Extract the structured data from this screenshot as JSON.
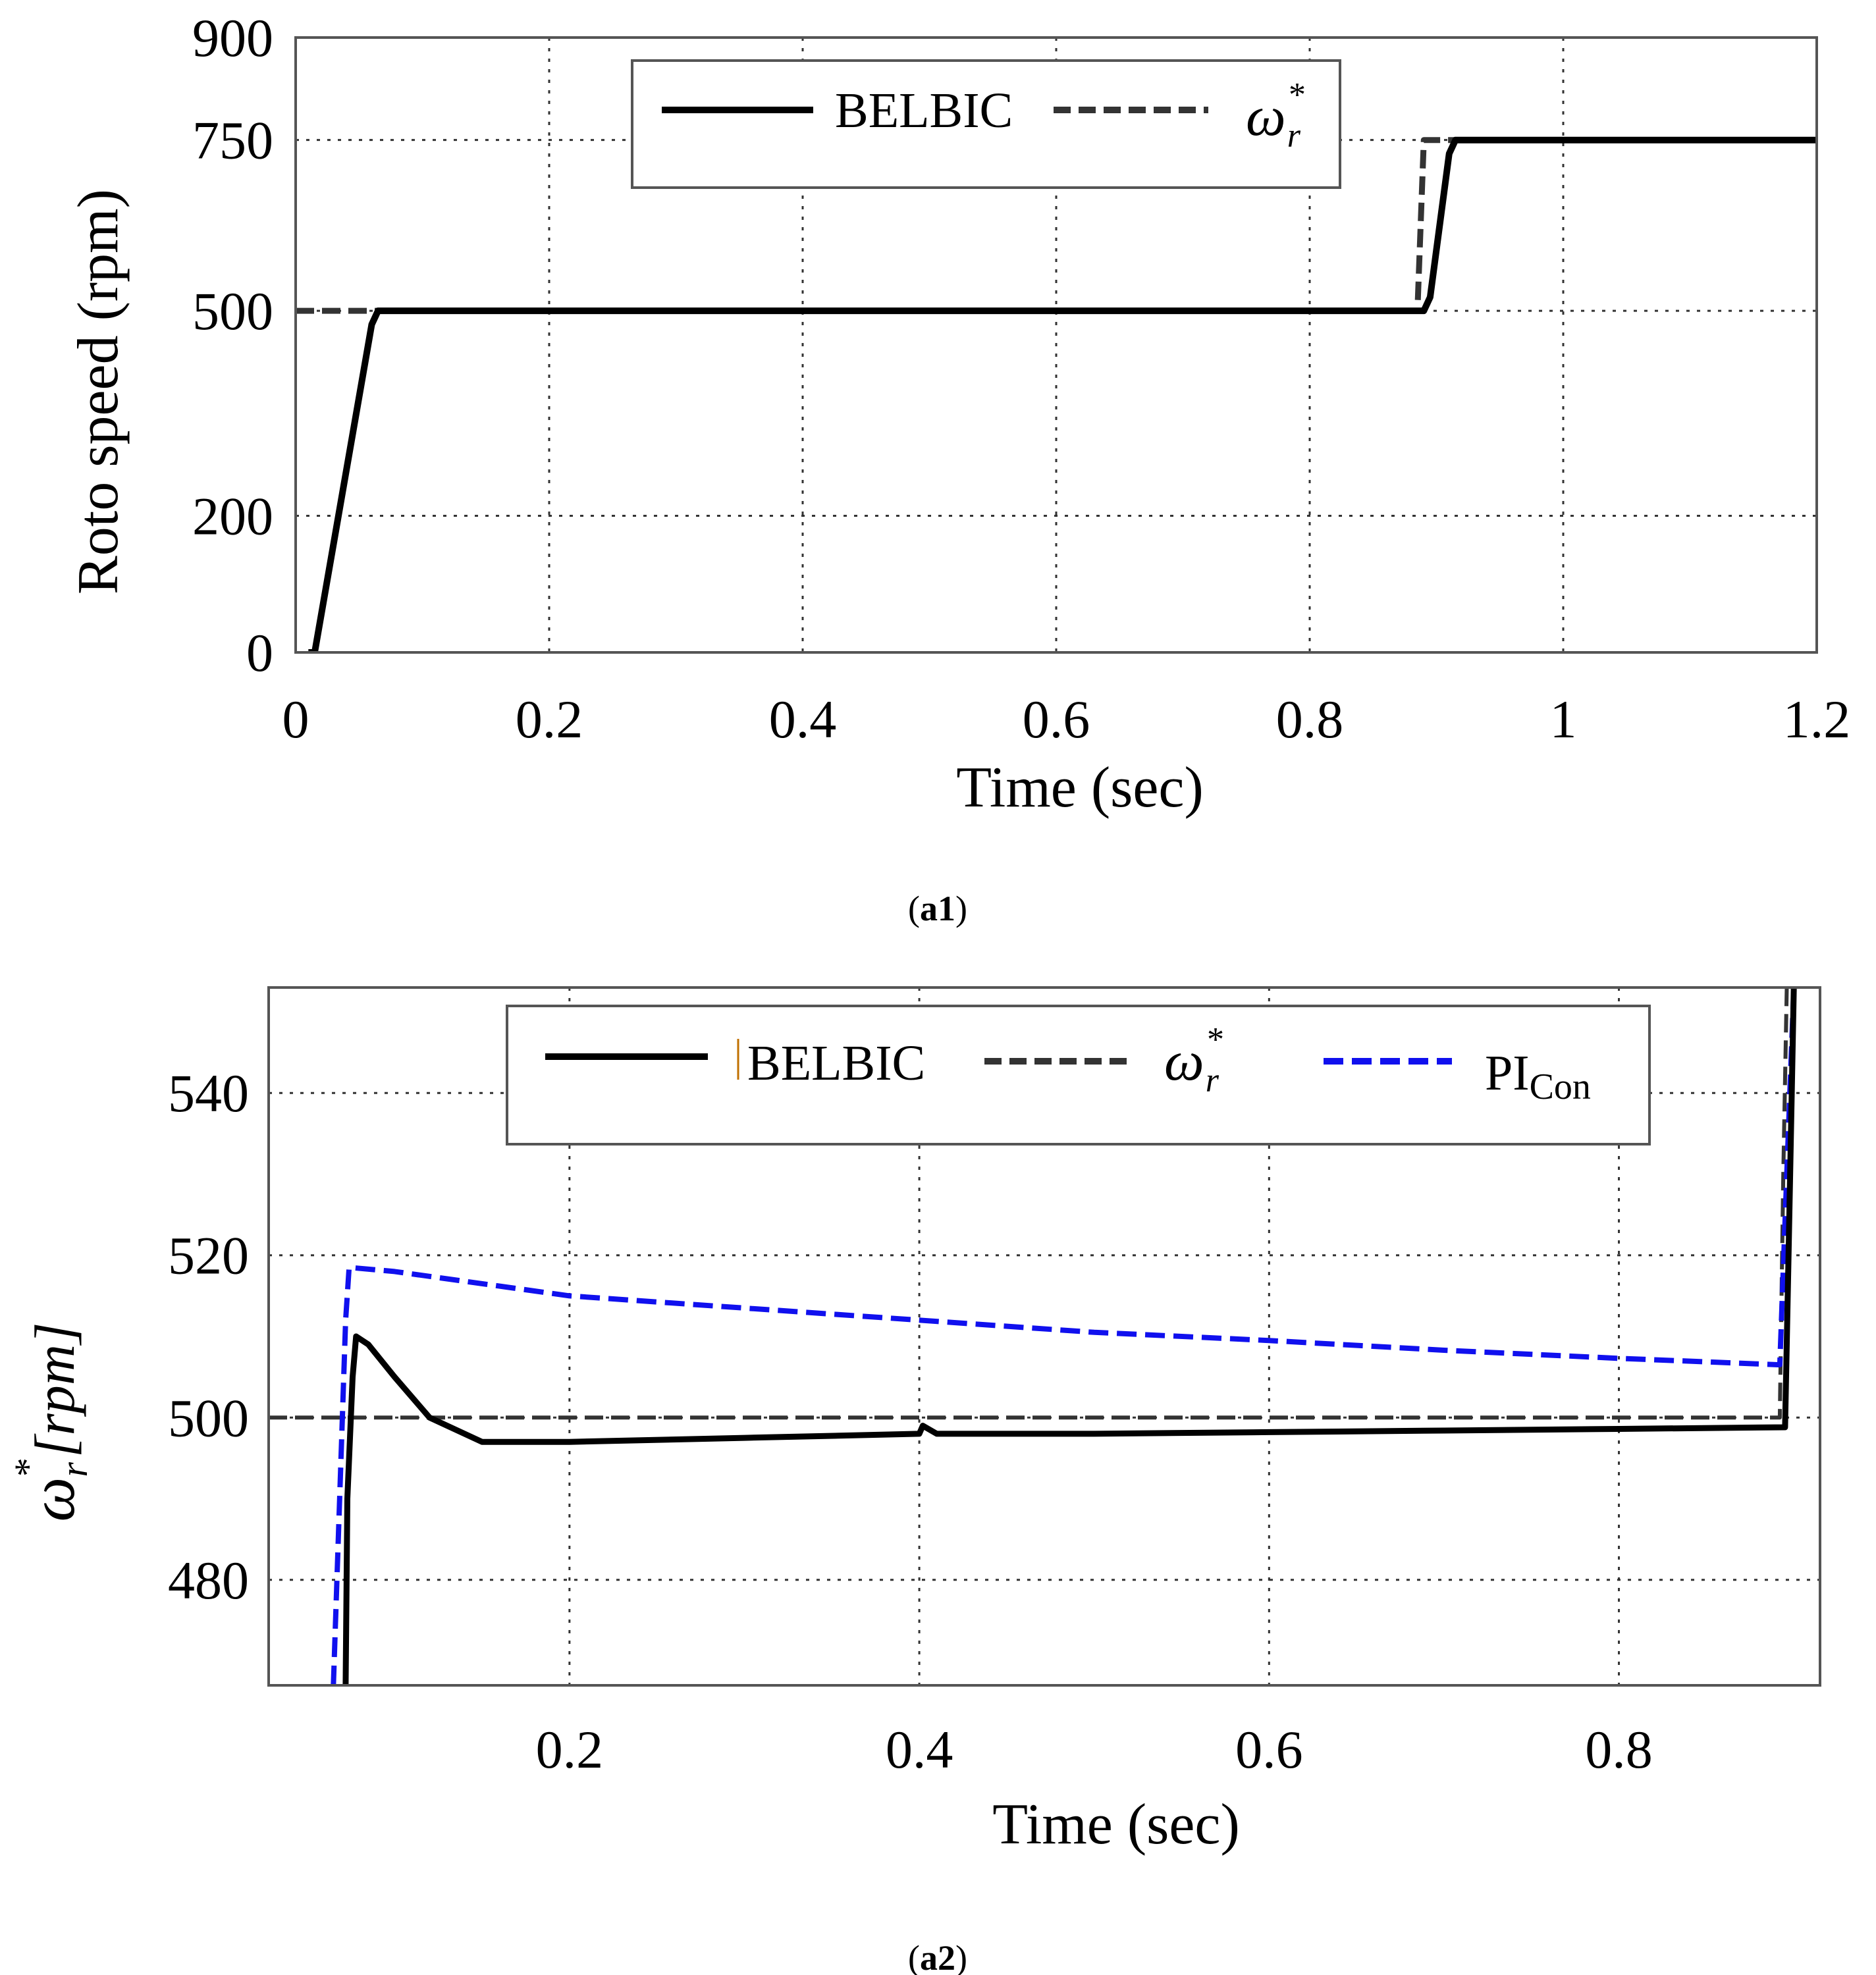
{
  "chart_data": [
    {
      "id": "a1",
      "type": "line",
      "caption": {
        "open": "(",
        "label": "a1",
        "close": ")"
      },
      "xlabel": "Time (sec)",
      "ylabel": "Roto speed (rpm)",
      "xlim": [
        0,
        1.2
      ],
      "ylim": [
        0,
        900
      ],
      "xticks": [
        0,
        0.2,
        0.4,
        0.6,
        0.8,
        1,
        1.2
      ],
      "xtick_labels": [
        "0",
        "0.2",
        "0.4",
        "0.6",
        "0.8",
        "1",
        "1.2"
      ],
      "yticks": [
        0,
        200,
        500,
        750,
        900
      ],
      "ytick_labels": [
        "0",
        "200",
        "500",
        "750",
        "900"
      ],
      "grid": true,
      "legend_position": "top-center",
      "series": [
        {
          "name": "BELBIC",
          "style": "solid",
          "color": "#000000",
          "x": [
            0.01,
            0.015,
            0.06,
            0.065,
            0.89,
            0.895,
            0.91,
            0.915,
            1.2
          ],
          "y": [
            0,
            0,
            480,
            500,
            500,
            520,
            730,
            750,
            750
          ]
        },
        {
          "name": "ω_r^*",
          "style": "dashed",
          "color": "#333333",
          "x": [
            0.0,
            0.06,
            0.885,
            0.89,
            1.2
          ],
          "y": [
            500,
            500,
            500,
            750,
            750
          ]
        }
      ],
      "legend": [
        {
          "label": "BELBIC",
          "style": "solid"
        },
        {
          "label": "ω",
          "sub": "r",
          "sup": "*",
          "style": "dashed"
        }
      ]
    },
    {
      "id": "a2",
      "type": "line",
      "caption": {
        "open": "(",
        "label": "a2",
        "close": ")"
      },
      "xlabel": "Time (sec)",
      "ylabel": {
        "symbol": "ω",
        "sub": "r",
        "sup": "*",
        "unit": "[rpm]"
      },
      "xlim": [
        0.028,
        0.915
      ],
      "ylim": [
        467,
        553
      ],
      "xticks": [
        0.2,
        0.4,
        0.6,
        0.8
      ],
      "xtick_labels": [
        "0.2",
        "0.4",
        "0.6",
        "0.8"
      ],
      "yticks": [
        480,
        500,
        520,
        540
      ],
      "ytick_labels": [
        "480",
        "500",
        "520",
        "540"
      ],
      "grid": true,
      "legend_position": "top-center",
      "series": [
        {
          "name": "BELBIC",
          "style": "solid",
          "color": "#000000",
          "x": [
            0.072,
            0.073,
            0.076,
            0.078,
            0.085,
            0.1,
            0.12,
            0.15,
            0.2,
            0.3,
            0.4,
            0.402,
            0.41,
            0.5,
            0.6,
            0.7,
            0.8,
            0.895,
            0.897,
            0.9
          ],
          "y": [
            467,
            490,
            505,
            510,
            509,
            505,
            500,
            497,
            497,
            497.5,
            498,
            499,
            498,
            498,
            498.2,
            498.4,
            498.6,
            498.8,
            520,
            553
          ]
        },
        {
          "name": "ω_r^*",
          "style": "dashed",
          "color": "#333333",
          "x": [
            0.028,
            0.892,
            0.894,
            0.896
          ],
          "y": [
            500,
            500,
            530,
            553
          ]
        },
        {
          "name": "PI_Con",
          "style": "dashed",
          "color": "#1010ee",
          "x": [
            0.065,
            0.072,
            0.074,
            0.1,
            0.2,
            0.3,
            0.4,
            0.5,
            0.6,
            0.7,
            0.8,
            0.892,
            0.896,
            0.9
          ],
          "y": [
            467,
            512,
            518.5,
            518,
            515,
            513.5,
            512,
            510.5,
            509.5,
            508.3,
            507.3,
            506.5,
            530,
            553
          ]
        }
      ],
      "legend": [
        {
          "label": "BELBIC",
          "style": "solid"
        },
        {
          "label": "ω",
          "sub": "r",
          "sup": "*",
          "style": "dashed"
        },
        {
          "label": "PI",
          "sub": "Con",
          "style": "dashed-blue"
        }
      ]
    }
  ]
}
